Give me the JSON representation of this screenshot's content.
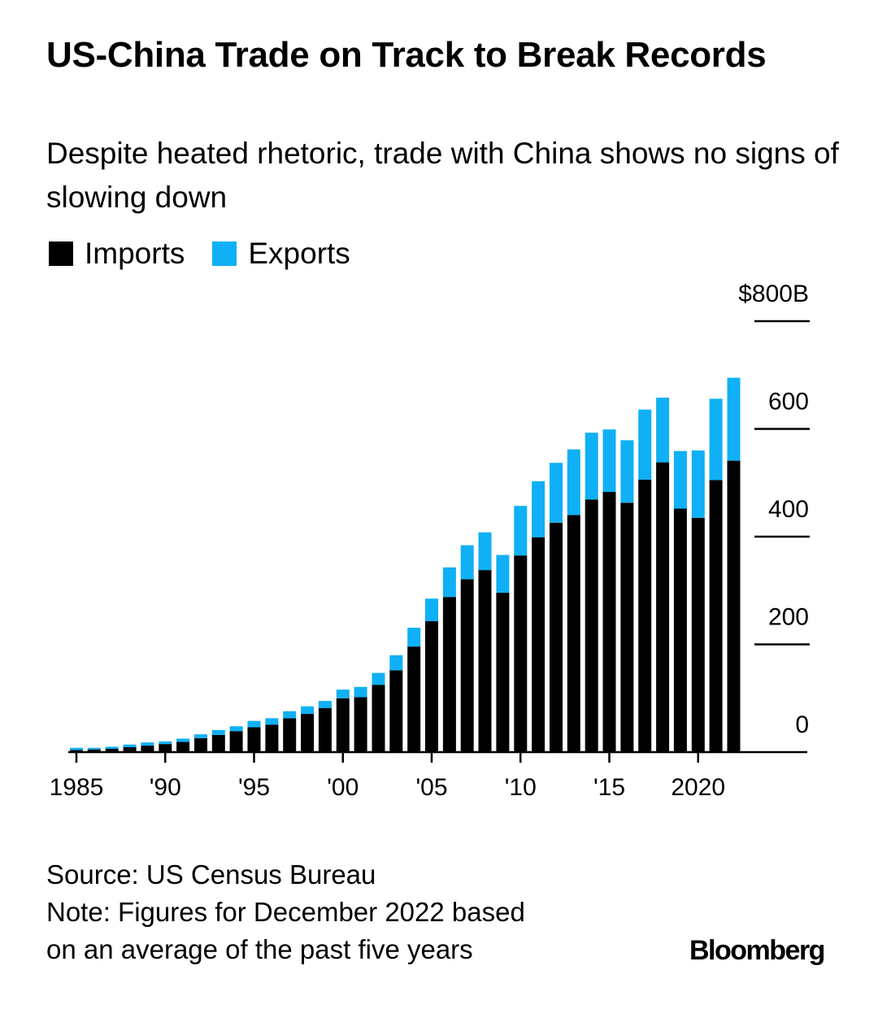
{
  "header": {
    "title": "US-China Trade on Track to Break Records",
    "subtitle": "Despite heated rhetoric, trade with China shows no signs of slowing down"
  },
  "legend": {
    "imports_label": "Imports",
    "exports_label": "Exports"
  },
  "colors": {
    "imports": "#000000",
    "exports": "#0fb0f5"
  },
  "footer": {
    "source": "Source: US Census Bureau",
    "note_line1": "Note: Figures for December 2022 based",
    "note_line2": "on an average of the past five years"
  },
  "brand": "Bloomberg",
  "chart_data": {
    "type": "bar",
    "stacked": true,
    "title": "US-China Trade on Track to Break Records",
    "subtitle": "Despite heated rhetoric, trade with China shows no signs of slowing down",
    "xlabel": "",
    "ylabel": "",
    "ylim": [
      0,
      800
    ],
    "y_ticks": [
      {
        "value": 800,
        "label": "$800B"
      },
      {
        "value": 600,
        "label": "600"
      },
      {
        "value": 400,
        "label": "400"
      },
      {
        "value": 200,
        "label": "200"
      },
      {
        "value": 0,
        "label": "0"
      }
    ],
    "x_ticks": [
      {
        "value": 1985,
        "label": "1985"
      },
      {
        "value": 1990,
        "label": "'90"
      },
      {
        "value": 1995,
        "label": "'95"
      },
      {
        "value": 2000,
        "label": "'00"
      },
      {
        "value": 2005,
        "label": "'05"
      },
      {
        "value": 2010,
        "label": "'10"
      },
      {
        "value": 2015,
        "label": "'15"
      },
      {
        "value": 2020,
        "label": "2020"
      }
    ],
    "legend_position": "top-left",
    "grid": false,
    "categories": [
      1985,
      1986,
      1987,
      1988,
      1989,
      1990,
      1991,
      1992,
      1993,
      1994,
      1995,
      1996,
      1997,
      1998,
      1999,
      2000,
      2001,
      2002,
      2003,
      2004,
      2005,
      2006,
      2007,
      2008,
      2009,
      2010,
      2011,
      2012,
      2013,
      2014,
      2015,
      2016,
      2017,
      2018,
      2019,
      2020,
      2021,
      2022
    ],
    "series": [
      {
        "name": "Imports",
        "values": [
          4,
          5,
          6,
          9,
          12,
          15,
          19,
          26,
          32,
          39,
          46,
          51,
          63,
          71,
          82,
          100,
          102,
          125,
          152,
          196,
          243,
          288,
          321,
          338,
          296,
          365,
          399,
          426,
          440,
          469,
          483,
          463,
          506,
          538,
          452,
          435,
          505,
          541
        ]
      },
      {
        "name": "Exports",
        "values": [
          4,
          3,
          4,
          5,
          6,
          5,
          6,
          7,
          9,
          9,
          12,
          12,
          13,
          14,
          13,
          16,
          19,
          22,
          28,
          35,
          42,
          55,
          63,
          70,
          70,
          92,
          104,
          111,
          122,
          124,
          116,
          116,
          130,
          120,
          107,
          125,
          151,
          154
        ]
      }
    ]
  }
}
